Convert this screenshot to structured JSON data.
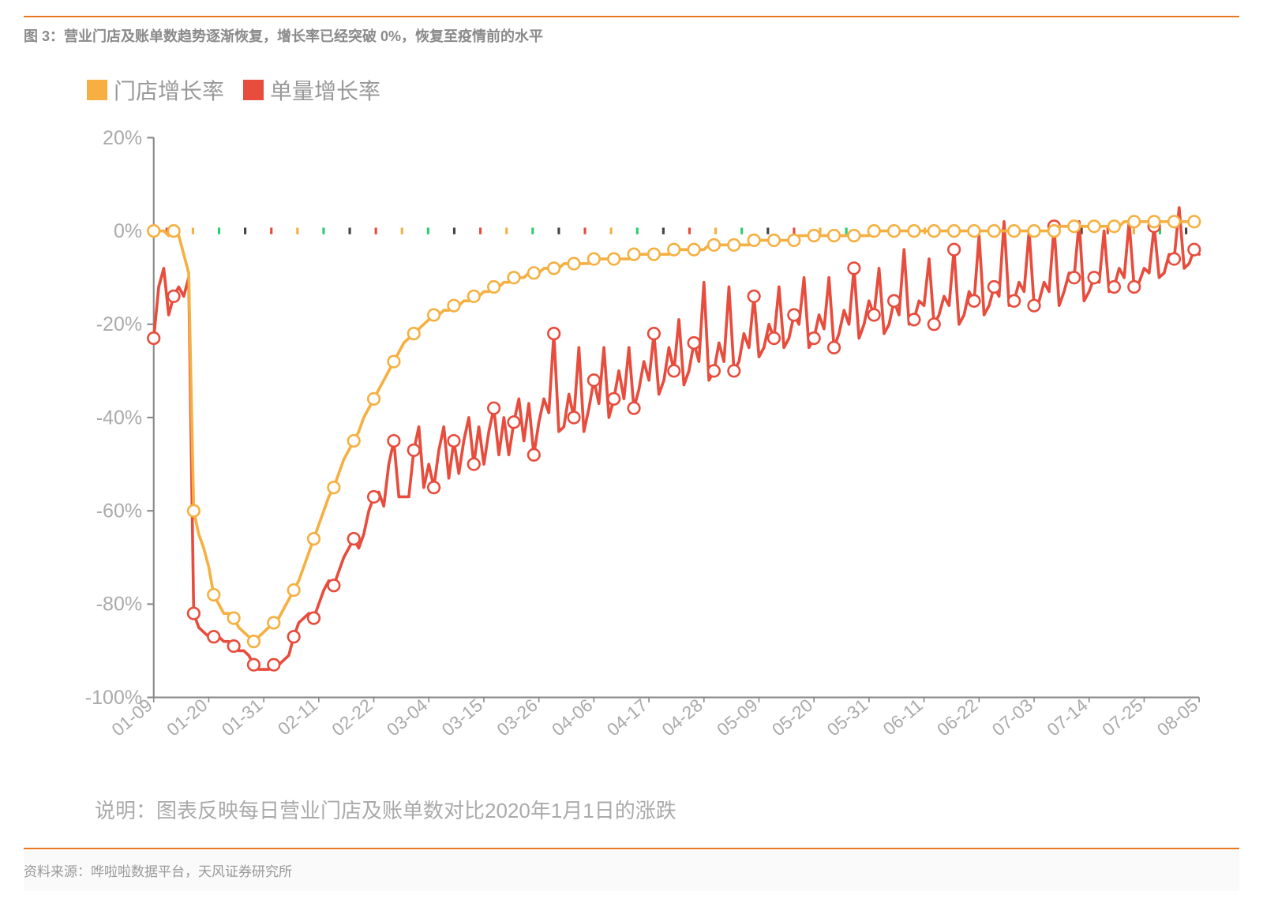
{
  "header": {
    "title": "图 3：营业门店及账单数趋势逐渐恢复，增长率已经突破 0%，恢复至疫情前的水平"
  },
  "legend": {
    "series1": {
      "label": "门店增长率",
      "color": "#f5b041"
    },
    "series2": {
      "label": "单量增长率",
      "color": "#e74c3c"
    }
  },
  "chart": {
    "type": "line",
    "background_color": "#ffffff",
    "line_width": 3.5,
    "marker_radius": 7,
    "marker_fill": "#ffffff",
    "marker_stroke_width": 2.5,
    "axis_color": "#888",
    "axis_width": 2,
    "ylim": [
      -100,
      20
    ],
    "ytick_step": 20,
    "ytick_labels": [
      "20%",
      "0%",
      "-20%",
      "-40%",
      "-60%",
      "-80%",
      "-100%"
    ],
    "ytick_values": [
      20,
      0,
      -20,
      -40,
      -60,
      -80,
      -100
    ],
    "axis_font_size": 24,
    "axis_font_color": "#aaa",
    "x_labels": [
      "01-09",
      "01-20",
      "01-31",
      "02-11",
      "02-22",
      "03-04",
      "03-15",
      "03-26",
      "04-06",
      "04-17",
      "04-28",
      "05-09",
      "05-20",
      "05-31",
      "06-11",
      "06-22",
      "07-03",
      "07-14",
      "07-25",
      "08-05"
    ],
    "zero_tick_colors": [
      "#e74c3c",
      "#f5b041",
      "#2ecc71",
      "#444",
      "#e74c3c",
      "#f5b041",
      "#2ecc71",
      "#444",
      "#e74c3c",
      "#f5b041",
      "#2ecc71",
      "#444",
      "#e74c3c",
      "#f5b041",
      "#2ecc71",
      "#444",
      "#e74c3c",
      "#f5b041",
      "#2ecc71",
      "#444",
      "#e74c3c",
      "#f5b041",
      "#2ecc71",
      "#444",
      "#e74c3c",
      "#f5b041",
      "#2ecc71",
      "#444",
      "#e74c3c",
      "#f5b041",
      "#2ecc71",
      "#444",
      "#e74c3c",
      "#f5b041",
      "#2ecc71",
      "#444",
      "#e74c3c",
      "#f5b041",
      "#2ecc71",
      "#444"
    ],
    "series1": {
      "name": "门店增长率",
      "color": "#f5b041",
      "markers_every": 4,
      "data": [
        0,
        0,
        0,
        -1,
        0,
        -1,
        -5,
        -9,
        -60,
        -65,
        -68,
        -72,
        -78,
        -80,
        -82,
        -82,
        -83,
        -85,
        -86,
        -87,
        -88,
        -87,
        -86,
        -85,
        -84,
        -83,
        -81,
        -79,
        -77,
        -75,
        -72,
        -69,
        -66,
        -63,
        -60,
        -57,
        -55,
        -52,
        -49,
        -47,
        -45,
        -43,
        -40,
        -38,
        -36,
        -34,
        -32,
        -30,
        -28,
        -26,
        -24,
        -23,
        -22,
        -21,
        -20,
        -19,
        -18,
        -18,
        -17,
        -17,
        -16,
        -16,
        -15,
        -15,
        -14,
        -14,
        -13,
        -13,
        -12,
        -12,
        -11,
        -11,
        -10,
        -10,
        -10,
        -9,
        -9,
        -9,
        -8,
        -8,
        -8,
        -8,
        -7,
        -7,
        -7,
        -7,
        -7,
        -7,
        -6,
        -6,
        -6,
        -6,
        -6,
        -6,
        -6,
        -6,
        -5,
        -5,
        -5,
        -5,
        -5,
        -5,
        -5,
        -5,
        -4,
        -4,
        -4,
        -4,
        -4,
        -4,
        -4,
        -3,
        -3,
        -3,
        -3,
        -3,
        -3,
        -3,
        -3,
        -3,
        -2,
        -2,
        -2,
        -2,
        -2,
        -2,
        -2,
        -2,
        -2,
        -1,
        -1,
        -1,
        -1,
        -1,
        -1,
        -1,
        -1,
        -1,
        -1,
        -1,
        -1,
        -1,
        -1,
        -1,
        0,
        0,
        0,
        0,
        0,
        0,
        0,
        0,
        0,
        0,
        0,
        0,
        0,
        0,
        0,
        0,
        0,
        0,
        0,
        0,
        0,
        0,
        0,
        0,
        0,
        0,
        0,
        0,
        0,
        0,
        0,
        0,
        0,
        0,
        0,
        0,
        0,
        1,
        1,
        1,
        1,
        1,
        1,
        1,
        1,
        1,
        1,
        1,
        1,
        1,
        2,
        2,
        2,
        2,
        2,
        2,
        2,
        2,
        2,
        2,
        2,
        2,
        2,
        2,
        2,
        2
      ]
    },
    "series2": {
      "name": "单量增长率",
      "color": "#e74c3c",
      "markers_every": 4,
      "data": [
        -23,
        -12,
        -8,
        -18,
        -14,
        -12,
        -14,
        -10,
        -82,
        -85,
        -86,
        -87,
        -87,
        -87,
        -88,
        -88,
        -89,
        -90,
        -90,
        -91,
        -93,
        -94,
        -94,
        -94,
        -93,
        -93,
        -92,
        -91,
        -87,
        -84,
        -83,
        -82,
        -83,
        -80,
        -77,
        -75,
        -76,
        -73,
        -70,
        -68,
        -66,
        -68,
        -65,
        -60,
        -57,
        -56,
        -59,
        -50,
        -45,
        -57,
        -57,
        -57,
        -47,
        -42,
        -55,
        -50,
        -55,
        -47,
        -42,
        -53,
        -45,
        -52,
        -45,
        -40,
        -50,
        -42,
        -50,
        -43,
        -38,
        -48,
        -40,
        -48,
        -41,
        -36,
        -45,
        -37,
        -48,
        -41,
        -36,
        -39,
        -22,
        -43,
        -42,
        -35,
        -40,
        -25,
        -43,
        -38,
        -32,
        -37,
        -25,
        -40,
        -36,
        -30,
        -36,
        -25,
        -38,
        -34,
        -28,
        -32,
        -22,
        -35,
        -32,
        -25,
        -30,
        -19,
        -33,
        -30,
        -24,
        -28,
        -11,
        -32,
        -30,
        -24,
        -28,
        -12,
        -30,
        -28,
        -22,
        -25,
        -14,
        -27,
        -25,
        -20,
        -23,
        -12,
        -25,
        -23,
        -18,
        -20,
        -10,
        -25,
        -23,
        -18,
        -21,
        -10,
        -25,
        -22,
        -17,
        -20,
        -8,
        -23,
        -20,
        -15,
        -18,
        -8,
        -22,
        -20,
        -15,
        -18,
        -4,
        -20,
        -19,
        -15,
        -16,
        -6,
        -20,
        -18,
        -14,
        -16,
        -4,
        -20,
        -18,
        -13,
        -15,
        -1,
        -18,
        -16,
        -12,
        -14,
        2,
        -16,
        -15,
        -11,
        -13,
        0,
        -16,
        -15,
        -11,
        -13,
        1,
        -16,
        -13,
        -9,
        -10,
        2,
        -15,
        -13,
        -10,
        -11,
        0,
        -13,
        -12,
        -8,
        -10,
        2,
        -12,
        -11,
        -8,
        -9,
        1,
        -10,
        -9,
        -5,
        -6,
        5,
        -8,
        -7,
        -4,
        -5
      ]
    }
  },
  "caption": "说明：图表反映每日营业门店及账单数对比2020年1月1日的涨跌",
  "footer": {
    "source": "资料来源：哗啦啦数据平台，天风证券研究所"
  }
}
